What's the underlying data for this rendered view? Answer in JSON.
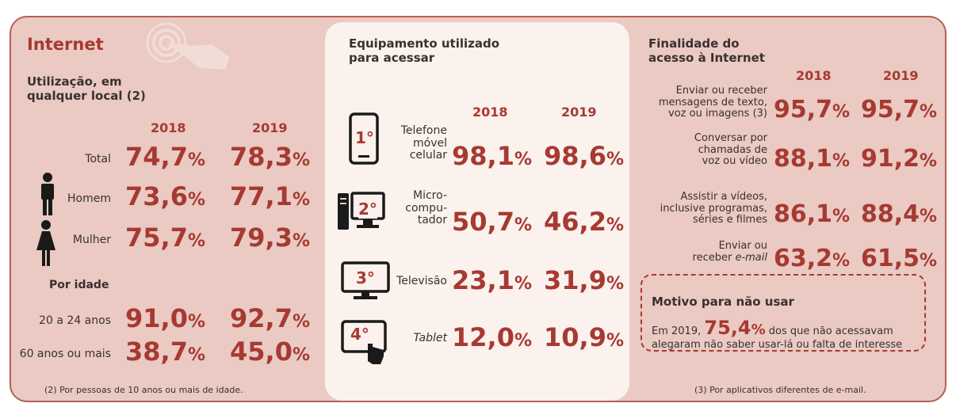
{
  "internet": {
    "title": "Internet",
    "subtitle_line1": "Utilização, em",
    "subtitle_line2": "qualquer local (2)",
    "years": [
      "2018",
      "2019"
    ],
    "rows": [
      {
        "label": "Total",
        "v2018": "74,7",
        "v2019": "78,3"
      },
      {
        "label": "Homem",
        "v2018": "73,6",
        "v2019": "77,1"
      },
      {
        "label": "Mulher",
        "v2018": "75,7",
        "v2019": "79,3"
      }
    ],
    "age_heading": "Por idade",
    "age_rows": [
      {
        "label": "20 a 24 anos",
        "v2018": "91,0",
        "v2019": "92,7"
      },
      {
        "label": "60 anos ou mais",
        "v2018": "38,7",
        "v2019": "45,0"
      }
    ],
    "footnote": "(2) Por pessoas de 10 anos ou mais de idade.",
    "pct_symbol": "%"
  },
  "equipment": {
    "title_line1": "Equipamento utilizado",
    "title_line2": "para acessar",
    "years": [
      "2018",
      "2019"
    ],
    "rows": [
      {
        "rank": "1°",
        "label_lines": [
          "Telefone",
          "móvel",
          "celular"
        ],
        "v2018": "98,1",
        "v2019": "98,6",
        "icon": "smartphone-icon"
      },
      {
        "rank": "2°",
        "label_lines": [
          "Micro-",
          "compu-",
          "tador"
        ],
        "v2018": "50,7",
        "v2019": "46,2",
        "icon": "computer-icon"
      },
      {
        "rank": "3°",
        "label_lines": [
          "Televisão"
        ],
        "v2018": "23,1",
        "v2019": "31,9",
        "icon": "television-icon"
      },
      {
        "rank": "4°",
        "label_lines": [
          "Tablet"
        ],
        "v2018": "12,0",
        "v2019": "10,9",
        "icon": "tablet-icon"
      }
    ]
  },
  "purpose": {
    "title_line1": "Finalidade do",
    "title_line2": "acesso à Internet",
    "years": [
      "2018",
      "2019"
    ],
    "rows": [
      {
        "label_lines": [
          "Enviar ou receber",
          "mensagens de texto,",
          "voz ou imagens (3)"
        ],
        "v2018": "95,7",
        "v2019": "95,7"
      },
      {
        "label_lines": [
          "Conversar por",
          "chamadas de",
          "voz ou vídeo"
        ],
        "v2018": "88,1",
        "v2019": "91,2"
      },
      {
        "label_lines": [
          "Assistir a vídeos,",
          "inclusive programas,",
          "séries e filmes"
        ],
        "v2018": "86,1",
        "v2019": "88,4"
      },
      {
        "label_lines": [
          "Enviar ou",
          "receber e-mail"
        ],
        "v2018": "63,2",
        "v2019": "61,5"
      }
    ],
    "footnote": "(3) Por aplicativos diferentes de e-mail."
  },
  "no_use": {
    "title": "Motivo para não usar",
    "text_prefix": "Em 2019,",
    "value": "75,4",
    "text_suffix": "dos que não acessavam",
    "text_line2": "alegaram não saber usar-lá ou falta de interesse"
  },
  "colors": {
    "accent": "#a63a32",
    "panel": "#eacac2",
    "center_panel": "#fbf1ed"
  }
}
